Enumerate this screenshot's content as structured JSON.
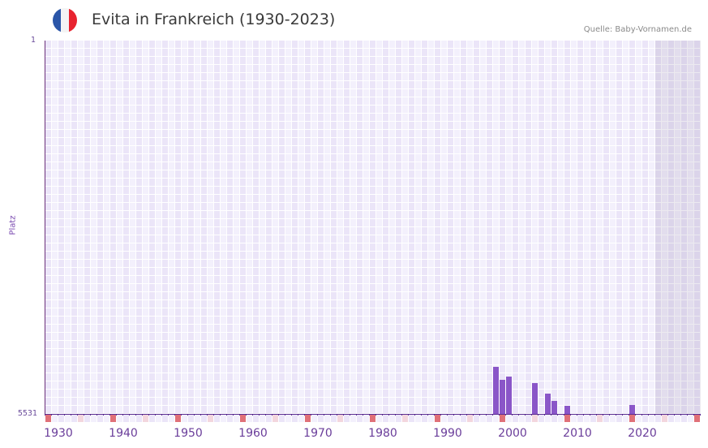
{
  "header": {
    "title": "Evita in Frankreich (1930-2023)",
    "source": "Quelle: Baby-Vornamen.de",
    "flag_colors": [
      "#2a55a8",
      "#f4f4f4",
      "#e8232f"
    ]
  },
  "chart_data": {
    "type": "bar",
    "title": "Evita in Frankreich (1930-2023)",
    "xlabel": "",
    "ylabel": "Platz",
    "y_inverted": true,
    "ylim": [
      1,
      5531
    ],
    "y_ticks": [
      "1",
      "5531"
    ],
    "x_range": [
      1928,
      2028
    ],
    "x_ticks": [
      "1930",
      "1940",
      "1950",
      "1960",
      "1970",
      "1980",
      "1990",
      "2000",
      "2010",
      "2020"
    ],
    "grid": true,
    "shaded_region": [
      2022,
      2028
    ],
    "categories": [
      "1997",
      "1998",
      "1999",
      "2003",
      "2005",
      "2006",
      "2008",
      "2018"
    ],
    "values": [
      4834,
      5026,
      4978,
      5074,
      5230,
      5339,
      5411,
      5399
    ],
    "series": [
      {
        "name": "Platz",
        "color": "#8a56c8",
        "points": [
          {
            "year": 1997,
            "rank": 4834
          },
          {
            "year": 1998,
            "rank": 5026
          },
          {
            "year": 1999,
            "rank": 4978
          },
          {
            "year": 2003,
            "rank": 5074
          },
          {
            "year": 2005,
            "rank": 5230
          },
          {
            "year": 2006,
            "rank": 5339
          },
          {
            "year": 2008,
            "rank": 5411
          },
          {
            "year": 2018,
            "rank": 5399
          }
        ]
      }
    ],
    "decade_markers": [
      1928,
      1938,
      1948,
      1958,
      1968,
      1978,
      1988,
      1998,
      2008,
      2018,
      2028
    ],
    "half_decade_markers": [
      1933,
      1943,
      1953,
      1963,
      1973,
      1983,
      1993,
      2003,
      2013,
      2023
    ]
  },
  "colors": {
    "bar": "#8a56c8",
    "axis": "#5a2d91",
    "marker_strong": "#e07078",
    "marker_light": "#f3d6de",
    "cell_dark": "#ebe5f8",
    "cell_light": "#f3f0fc"
  }
}
